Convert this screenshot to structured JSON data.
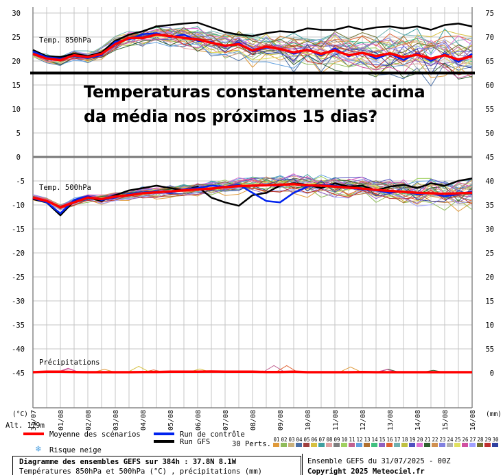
{
  "overlay": {
    "line1": "Temperaturas constantemente acima",
    "line2": "da média nos próximos 15 dias?"
  },
  "chart_data": [
    {
      "type": "line",
      "title": "Temp. 850hPa",
      "ylim": [
        0,
        30
      ],
      "y_ticks_left": [
        "30",
        "25",
        "20",
        "15",
        "10",
        "5",
        "0"
      ],
      "y_ticks_right": [
        "75",
        "70",
        "65",
        "60",
        "55",
        "50",
        "45"
      ],
      "threshold": 17.5,
      "x_days": [
        0,
        0.5,
        1,
        1.5,
        2,
        2.5,
        3,
        3.5,
        4,
        4.5,
        5,
        5.5,
        6,
        6.5,
        7,
        7.5,
        8,
        8.5,
        9,
        9.5,
        10,
        10.5,
        11,
        11.5,
        12,
        12.5,
        13,
        13.5,
        14,
        14.5,
        15,
        15.5,
        16
      ],
      "series": [
        {
          "role": "mean",
          "values": [
            21.5,
            20.5,
            20.2,
            21.2,
            20.8,
            21.5,
            23.5,
            24.8,
            24.8,
            25.5,
            25.2,
            24.8,
            24.5,
            23.8,
            23.2,
            23.5,
            22.2,
            23.0,
            22.5,
            21.8,
            22.3,
            21.5,
            22.2,
            21.2,
            21.7,
            21.0,
            21.6,
            20.8,
            21.3,
            20.5,
            21.2,
            20.3,
            21.0
          ]
        },
        {
          "role": "control",
          "values": [
            22.0,
            20.8,
            20.5,
            21.0,
            20.6,
            21.2,
            24.0,
            24.5,
            25.6,
            25.8,
            25.0,
            25.5,
            24.2,
            24.0,
            23.0,
            23.8,
            22.0,
            22.8,
            22.6,
            21.5,
            22.4,
            21.2,
            22.6,
            21.0,
            21.8,
            20.5,
            21.5,
            20.2,
            21.6,
            20.0,
            21.5,
            19.8,
            21.5
          ]
        },
        {
          "role": "gfs",
          "values": [
            22.3,
            21.0,
            20.8,
            21.5,
            21.0,
            21.8,
            24.2,
            25.5,
            26.2,
            27.2,
            27.5,
            27.8,
            28.0,
            27.0,
            26.0,
            25.5,
            25.2,
            25.8,
            26.2,
            26.0,
            26.8,
            26.5,
            26.5,
            27.2,
            26.5,
            27.0,
            27.2,
            26.8,
            27.2,
            26.5,
            27.5,
            27.8,
            27.2
          ]
        }
      ]
    },
    {
      "type": "line",
      "title": "Temp. 500hPa",
      "ylim": [
        -45,
        0
      ],
      "y_ticks_left": [
        "0",
        "-5",
        "-10",
        "-15",
        "-20",
        "-25",
        "-30",
        "-35",
        "-40",
        "-45"
      ],
      "y_ticks_right": [
        "45",
        "40",
        "35",
        "30",
        "25",
        "20",
        "15",
        "10",
        "5",
        "0"
      ],
      "x_days": [
        0,
        0.5,
        1,
        1.5,
        2,
        2.5,
        3,
        3.5,
        4,
        4.5,
        5,
        5.5,
        6,
        6.5,
        7,
        7.5,
        8,
        8.5,
        9,
        9.5,
        10,
        10.5,
        11,
        11.5,
        12,
        12.5,
        13,
        13.5,
        14,
        14.5,
        15,
        15.5,
        16
      ],
      "series": [
        {
          "role": "mean",
          "values": [
            -8.5,
            -9.2,
            -10.5,
            -9.5,
            -8.5,
            -8.8,
            -8.3,
            -8.0,
            -7.6,
            -7.4,
            -7.2,
            -7.0,
            -6.8,
            -6.6,
            -6.3,
            -6.1,
            -6.0,
            -5.9,
            -5.8,
            -5.7,
            -5.9,
            -6.0,
            -6.2,
            -6.4,
            -6.6,
            -6.9,
            -7.1,
            -7.3,
            -7.5,
            -7.6,
            -7.7,
            -7.6,
            -7.5
          ]
        },
        {
          "role": "control",
          "values": [
            -8.6,
            -9.5,
            -11.8,
            -9.0,
            -8.2,
            -9.0,
            -8.5,
            -7.8,
            -7.5,
            -7.2,
            -7.5,
            -6.8,
            -6.5,
            -6.0,
            -6.2,
            -5.8,
            -7.5,
            -9.2,
            -9.5,
            -7.5,
            -6.2,
            -5.8,
            -6.0,
            -6.5,
            -6.8,
            -7.0,
            -7.5,
            -7.2,
            -7.8,
            -7.6,
            -8.2,
            -7.8,
            -7.2
          ]
        },
        {
          "role": "gfs",
          "values": [
            -8.8,
            -9.5,
            -12.2,
            -9.2,
            -8.5,
            -9.2,
            -8.0,
            -7.0,
            -6.5,
            -6.0,
            -6.5,
            -7.0,
            -6.2,
            -8.5,
            -9.5,
            -10.2,
            -8.0,
            -7.5,
            -6.0,
            -5.5,
            -5.8,
            -6.5,
            -5.5,
            -6.2,
            -6.0,
            -7.0,
            -6.2,
            -5.8,
            -6.5,
            -5.5,
            -6.0,
            -5.0,
            -4.5
          ]
        }
      ]
    },
    {
      "type": "line",
      "title": "Précipitations",
      "right_ticks": [
        "5",
        "0"
      ],
      "x_days": [
        0,
        0.5,
        1,
        1.5,
        2,
        2.5,
        3,
        3.5,
        4,
        4.5,
        5,
        5.5,
        6,
        6.5,
        7,
        7.5,
        8,
        8.5,
        9,
        9.5,
        10,
        10.5,
        11,
        11.5,
        12,
        12.5,
        13,
        13.5,
        14,
        14.5,
        15,
        15.5,
        16
      ],
      "series": [
        {
          "role": "mean",
          "values": [
            0,
            0.1,
            0.1,
            0.05,
            0,
            0,
            0,
            0,
            0.05,
            0.05,
            0.1,
            0.1,
            0.1,
            0.15,
            0.1,
            0.1,
            0.1,
            0.05,
            0.05,
            0.1,
            0,
            0,
            0,
            0,
            0.05,
            0,
            0,
            0,
            0,
            0,
            0,
            0,
            0
          ]
        }
      ]
    }
  ],
  "x_axis": {
    "units_left": "(°C)",
    "units_right": "(mm)",
    "ticks": [
      "31/07",
      "01/08",
      "02/08",
      "03/08",
      "04/08",
      "05/08",
      "06/08",
      "07/08",
      "08/08",
      "09/08",
      "10/08",
      "11/08",
      "12/08",
      "13/08",
      "14/08",
      "15/08",
      "16/08"
    ]
  },
  "legend": {
    "altitude": "Alt. 179m",
    "mean_label": "Moyenne des scénarios",
    "control_label": "Run de contrôle",
    "gfs_label": "Run GFS",
    "perts_label": "30 Perts.",
    "snow_label": "Risque neige",
    "pert_numbers": [
      "01",
      "02",
      "03",
      "04",
      "05",
      "06",
      "07",
      "08",
      "09",
      "10",
      "11",
      "12",
      "13",
      "14",
      "15",
      "16",
      "17",
      "18",
      "19",
      "20",
      "21",
      "22",
      "23",
      "24",
      "25",
      "26",
      "27",
      "28",
      "29",
      "30"
    ],
    "pert_colors": [
      "#e09a3a",
      "#8fbc5a",
      "#c9b07a",
      "#4a6fa5",
      "#a04040",
      "#d6c040",
      "#3f9f9f",
      "#e0a0a0",
      "#7d7d7d",
      "#a0d060",
      "#c06090",
      "#60a0e0",
      "#b07030",
      "#40c080",
      "#9060c0",
      "#e06030",
      "#70b0b0",
      "#c0c040",
      "#5050c0",
      "#e070d0",
      "#306030",
      "#d09050",
      "#8080e0",
      "#b0b0b0",
      "#e0e060",
      "#d050a0",
      "#a0a0ff",
      "#707030",
      "#c03030",
      "#3040a0"
    ],
    "mean_color": "#ff0000",
    "control_color": "#0022ee",
    "gfs_color": "#000000"
  },
  "footer": {
    "title": "Diagramme des ensembles GEFS sur 384h : 37.8N 8.1W",
    "subtitle": "Températures 850hPa et 500hPa (°C) , précipitations (mm)",
    "run": "Ensemble GEFS du 31/07/2025 - 00Z",
    "copyright": "Copyright 2025 Meteociel.fr"
  }
}
